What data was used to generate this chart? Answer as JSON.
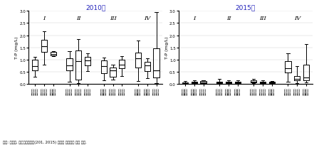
{
  "title_left": "2010년",
  "title_right": "2015년",
  "ylabel": "T-P (mg/L)",
  "ylim": [
    0.0,
    3.0
  ],
  "yticks": [
    0.0,
    0.5,
    1.0,
    1.5,
    2.0,
    2.5,
    3.0
  ],
  "title_color": "#2222bb",
  "source_text": "자료: 환경부, 국립환경과학원(201, 2015) 자료를 활용하여 저자 작성.",
  "left_boxes": {
    "group_I": [
      {
        "q1": 0.55,
        "median": 0.73,
        "q3": 0.98,
        "whislo": 0.28,
        "whishi": 1.1
      },
      {
        "q1": 1.3,
        "median": 1.55,
        "q3": 1.82,
        "whislo": 0.78,
        "whishi": 2.15
      },
      {
        "q1": 1.18,
        "median": 1.24,
        "q3": 1.3,
        "whislo": 1.14,
        "whishi": 1.33
      }
    ],
    "group_II": [
      {
        "q1": 0.55,
        "median": 0.75,
        "q3": 1.05,
        "whislo": 0.08,
        "whishi": 1.35
      },
      {
        "q1": 0.18,
        "median": 0.92,
        "q3": 1.38,
        "whislo": 0.03,
        "whishi": 1.85
      },
      {
        "q1": 0.75,
        "median": 0.96,
        "q3": 1.1,
        "whislo": 0.52,
        "whishi": 1.25
      }
    ],
    "group_III": [
      {
        "q1": 0.45,
        "median": 0.72,
        "q3": 0.95,
        "whislo": 0.14,
        "whishi": 1.08
      },
      {
        "q1": 0.28,
        "median": 0.55,
        "q3": 0.67,
        "whislo": 0.16,
        "whishi": 0.8
      },
      {
        "q1": 0.65,
        "median": 0.78,
        "q3": 1.0,
        "whislo": 0.33,
        "whishi": 1.15
      }
    ],
    "group_IV": [
      {
        "q1": 0.68,
        "median": 1.05,
        "q3": 1.28,
        "whislo": 0.1,
        "whishi": 1.78
      },
      {
        "q1": 0.52,
        "median": 0.77,
        "q3": 0.9,
        "whislo": 0.22,
        "whishi": 1.05
      },
      {
        "q1": 0.25,
        "median": 0.55,
        "q3": 1.45,
        "whislo": 0.04,
        "whishi": 2.95
      }
    ]
  },
  "right_boxes": {
    "group_I": [
      {
        "q1": 0.02,
        "median": 0.04,
        "q3": 0.065,
        "whislo": 0.005,
        "whishi": 0.11
      },
      {
        "q1": 0.03,
        "median": 0.055,
        "q3": 0.09,
        "whislo": 0.005,
        "whishi": 0.13
      },
      {
        "q1": 0.04,
        "median": 0.07,
        "q3": 0.11,
        "whislo": 0.01,
        "whishi": 0.14
      }
    ],
    "group_II": [
      {
        "q1": 0.03,
        "median": 0.065,
        "q3": 0.09,
        "whislo": 0.005,
        "whishi": 0.2
      },
      {
        "q1": 0.025,
        "median": 0.055,
        "q3": 0.085,
        "whislo": 0.005,
        "whishi": 0.14
      },
      {
        "q1": 0.03,
        "median": 0.06,
        "q3": 0.09,
        "whislo": 0.01,
        "whishi": 0.13
      }
    ],
    "group_III": [
      {
        "q1": 0.055,
        "median": 0.095,
        "q3": 0.14,
        "whislo": 0.015,
        "whishi": 0.21
      },
      {
        "q1": 0.025,
        "median": 0.05,
        "q3": 0.085,
        "whislo": 0.005,
        "whishi": 0.13
      },
      {
        "q1": 0.03,
        "median": 0.06,
        "q3": 0.09,
        "whislo": 0.01,
        "whishi": 0.12
      }
    ],
    "group_IV": [
      {
        "q1": 0.48,
        "median": 0.63,
        "q3": 0.93,
        "whislo": 0.08,
        "whishi": 1.26
      },
      {
        "q1": 0.13,
        "median": 0.2,
        "q3": 0.33,
        "whislo": 0.04,
        "whishi": 0.72
      },
      {
        "q1": 0.15,
        "median": 0.26,
        "q3": 0.8,
        "whislo": 0.06,
        "whishi": 1.65
      }
    ]
  },
  "xtick_lines": [
    [
      "소하수역",
      "소하수역",
      "소하수역"
    ],
    [
      "과반수역",
      "정도수역",
      "기타수역"
    ]
  ]
}
